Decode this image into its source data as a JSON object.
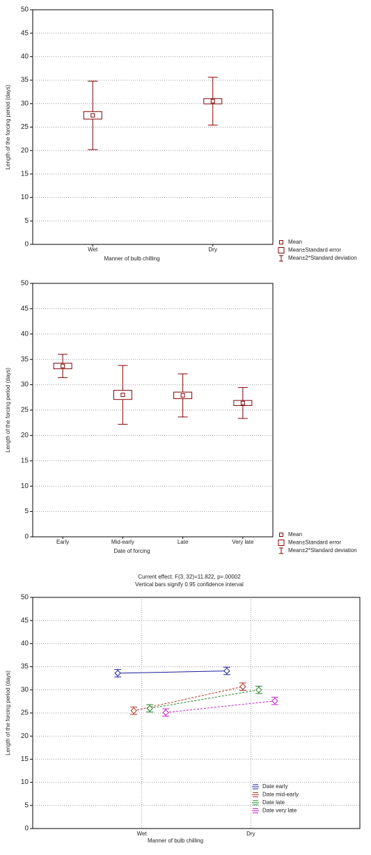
{
  "chart_data": [
    {
      "type": "meanplot",
      "xlabel": "Manner of bulb chilling",
      "ylabel": "Length of the forcing period (days)",
      "categories": [
        "Wet",
        "Dry"
      ],
      "means": [
        27.5,
        30.5
      ],
      "se": [
        0.8,
        0.55
      ],
      "sd2": [
        7.3,
        5.1
      ],
      "ylim": [
        0,
        50
      ],
      "yticks": [
        0,
        5,
        10,
        15,
        20,
        25,
        30,
        35,
        40,
        45,
        50
      ],
      "grid": true,
      "color": "#800000",
      "legend": [
        "Mean",
        "Mean±Standard error",
        "Mean±2*Standard deviation"
      ]
    },
    {
      "type": "meanplot",
      "xlabel": "Date of forcing",
      "ylabel": "Length of the forcing period (days)",
      "categories": [
        "Early",
        "Mid-early",
        "Late",
        "Very late"
      ],
      "means": [
        33.7,
        28.0,
        27.9,
        26.4
      ],
      "se": [
        0.55,
        0.9,
        0.65,
        0.5
      ],
      "sd2": [
        2.3,
        5.8,
        4.25,
        3.05
      ],
      "ylim": [
        0,
        50
      ],
      "yticks": [
        0,
        5,
        10,
        15,
        20,
        25,
        30,
        35,
        40,
        45,
        50
      ],
      "grid": true,
      "color": "#800000",
      "legend": [
        "Mean",
        "Mean±Standard error",
        "Mean±2*Standard deviation"
      ]
    },
    {
      "type": "line",
      "title": "Current effect: F(3, 32)=11.822, p=.00002",
      "subtitle": "Vertical bars signify 0.95 confidence interval",
      "xlabel": "Manner of bulb chilling",
      "ylabel": "Length of the forcing period (days)",
      "categories": [
        "Wet",
        "Dry"
      ],
      "series": [
        {
          "name": "Date early",
          "color": "#1a1a9a",
          "style": "solid",
          "values": [
            33.6,
            34.1
          ],
          "errors": [
            0.8,
            0.8
          ]
        },
        {
          "name": "Date mid-early",
          "color": "#b03020",
          "style": "dashed",
          "values": [
            25.5,
            30.7
          ],
          "errors": [
            0.8,
            0.8
          ]
        },
        {
          "name": "Date late",
          "color": "#208020",
          "style": "dashed",
          "values": [
            26.0,
            30.0
          ],
          "errors": [
            0.8,
            0.8
          ]
        },
        {
          "name": "Date very late",
          "color": "#c020c0",
          "style": "dashed",
          "values": [
            25.1,
            27.6
          ],
          "errors": [
            0.8,
            0.8
          ]
        }
      ],
      "ylim": [
        0,
        50
      ],
      "yticks": [
        0,
        5,
        10,
        15,
        20,
        25,
        30,
        35,
        40,
        45,
        50
      ],
      "grid": true,
      "legend_position": "lower right"
    }
  ]
}
